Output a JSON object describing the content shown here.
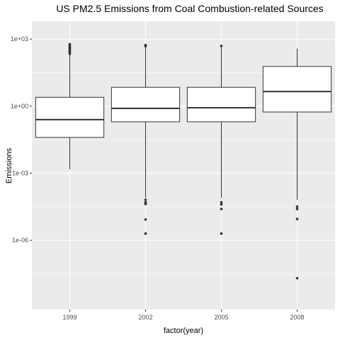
{
  "chart_data": {
    "type": "box",
    "title": "US PM2.5 Emissions from Coal Combustion-related Sources",
    "xlabel": "factor(year)",
    "ylabel": "Emissions",
    "y_scale": "log10",
    "y_range_log10": [
      -9.1,
      3.8
    ],
    "y_ticks": [
      {
        "log10": 3,
        "label": "1e+03"
      },
      {
        "log10": 0,
        "label": "1e+00"
      },
      {
        "log10": -3,
        "label": "1e-03"
      },
      {
        "log10": -6,
        "label": "1e-06"
      }
    ],
    "grid": true,
    "legend": "none",
    "colors": {
      "panel_background": "#ebebeb",
      "grid_major": "#ffffff",
      "grid_minor": "#f5f5f5",
      "box_fill": "#ffffff",
      "box_line": "#333333",
      "outlier": "#333333"
    },
    "categories": [
      "1999",
      "2002",
      "2005",
      "2008"
    ],
    "boxes": [
      {
        "category": "1999",
        "lower_whisker": 0.0015,
        "q1": 0.04,
        "median": 0.25,
        "q3": 2.5,
        "upper_whisker": 200,
        "outliers": [
          220,
          250,
          280,
          310,
          350,
          390,
          430,
          470,
          520,
          600
        ]
      },
      {
        "category": "2002",
        "lower_whisker": 8e-05,
        "q1": 0.2,
        "median": 0.8,
        "q3": 7.0,
        "upper_whisker": 420,
        "outliers": [
          480,
          540,
          6.5e-05,
          5e-05,
          4.2e-05,
          8.5e-06,
          2e-06
        ]
      },
      {
        "category": "2005",
        "lower_whisker": 8e-05,
        "q1": 0.2,
        "median": 0.85,
        "q3": 7.0,
        "upper_whisker": 450,
        "outliers": [
          500,
          5e-05,
          4e-05,
          2.5e-05,
          2e-06
        ]
      },
      {
        "category": "2008",
        "lower_whisker": 6.5e-05,
        "q1": 0.55,
        "median": 4.5,
        "q3": 60,
        "upper_whisker": 380,
        "outliers": [
          3.2e-05,
          2.5e-05,
          9e-06,
          2e-08
        ]
      }
    ]
  }
}
